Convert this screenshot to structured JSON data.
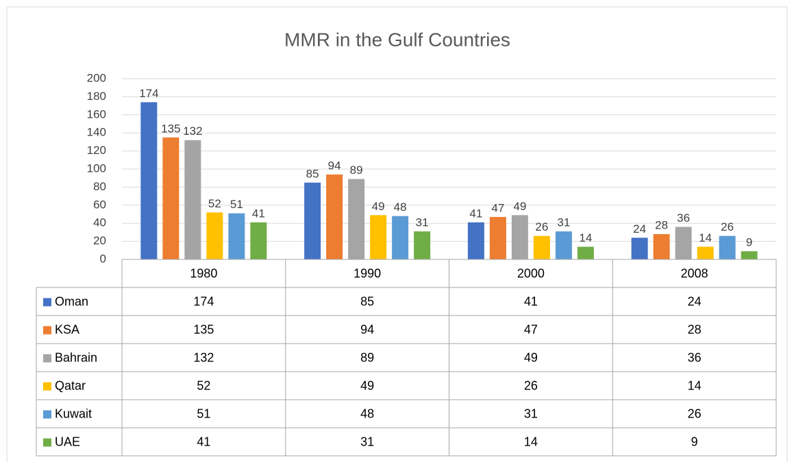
{
  "chart_data": {
    "type": "bar",
    "title": "MMR in the Gulf Countries",
    "categories": [
      "1980",
      "1990",
      "2000",
      "2008"
    ],
    "series": [
      {
        "name": "Oman",
        "color": "#4472c4",
        "values": [
          174,
          85,
          41,
          24
        ]
      },
      {
        "name": "KSA",
        "color": "#ed7d31",
        "values": [
          135,
          94,
          47,
          28
        ]
      },
      {
        "name": "Bahrain",
        "color": "#a5a5a5",
        "values": [
          132,
          89,
          49,
          36
        ]
      },
      {
        "name": "Qatar",
        "color": "#ffc000",
        "values": [
          52,
          49,
          26,
          14
        ]
      },
      {
        "name": "Kuwait",
        "color": "#5b9bd5",
        "values": [
          51,
          48,
          31,
          26
        ]
      },
      {
        "name": "UAE",
        "color": "#70ad47",
        "values": [
          41,
          31,
          14,
          9
        ]
      }
    ],
    "ylim": [
      0,
      200
    ],
    "yticks": [
      0,
      20,
      40,
      60,
      80,
      100,
      120,
      140,
      160,
      180,
      200
    ],
    "grid": true,
    "data_table": true
  }
}
